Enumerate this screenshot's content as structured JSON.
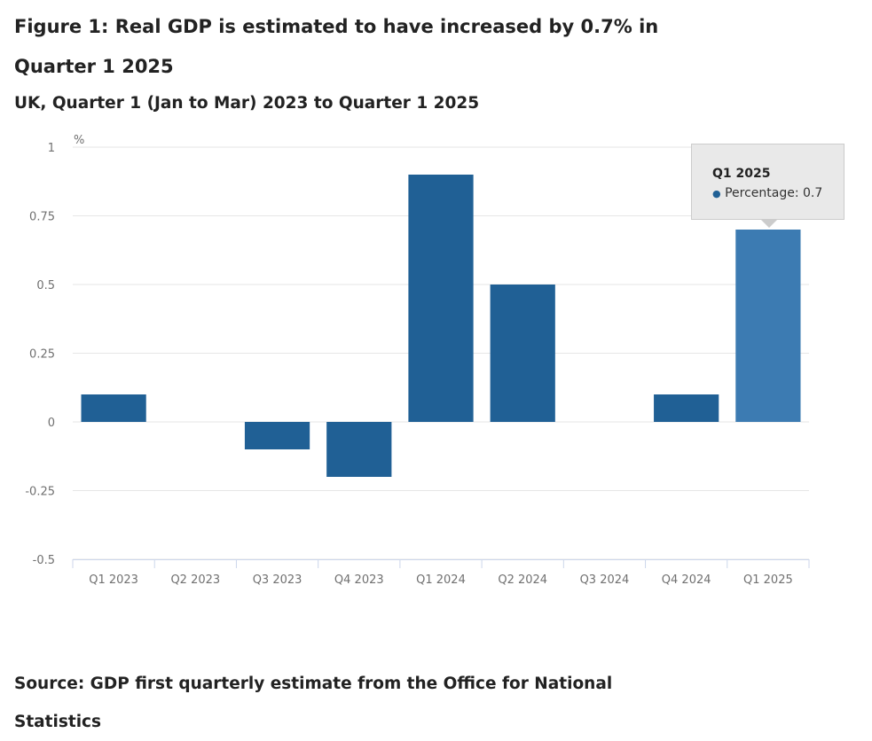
{
  "title": "Figure 1: Real GDP is estimated to have increased by 0.7% in Quarter 1 2025",
  "subtitle": "UK, Quarter 1 (Jan to Mar) 2023 to Quarter 1 2025",
  "source": "Source: GDP first quarterly estimate from the Office for National Statistics",
  "chart_data": {
    "type": "bar",
    "title": "Figure 1: Real GDP is estimated to have increased by 0.7% in Quarter 1 2025",
    "subtitle": "UK, Quarter 1 (Jan to Mar) 2023 to Quarter 1 2025",
    "ylabel": "%",
    "xlabel": "",
    "categories": [
      "Q1 2023",
      "Q2 2023",
      "Q3 2023",
      "Q4 2023",
      "Q1 2024",
      "Q2 2024",
      "Q3 2024",
      "Q4 2024",
      "Q1 2025"
    ],
    "series": [
      {
        "name": "Percentage",
        "values": [
          0.1,
          0,
          -0.1,
          -0.2,
          0.9,
          0.5,
          0,
          0.1,
          0.7
        ]
      }
    ],
    "ylim": [
      -0.5,
      1
    ],
    "yticks": [
      1,
      0.75,
      0.5,
      0.25,
      0,
      -0.25,
      -0.5
    ],
    "ytick_labels": [
      "1",
      "0.75",
      "0.5",
      "0.25",
      "0",
      "-0.25",
      "-0.5"
    ],
    "grid": true,
    "legend": "none",
    "colors": {
      "bar": "#206095",
      "highlighted_bar": "#3c7bb2"
    },
    "tooltip": {
      "category": "Q1 2025",
      "label": "Percentage: 0.7",
      "highlighted_index": 8
    }
  }
}
